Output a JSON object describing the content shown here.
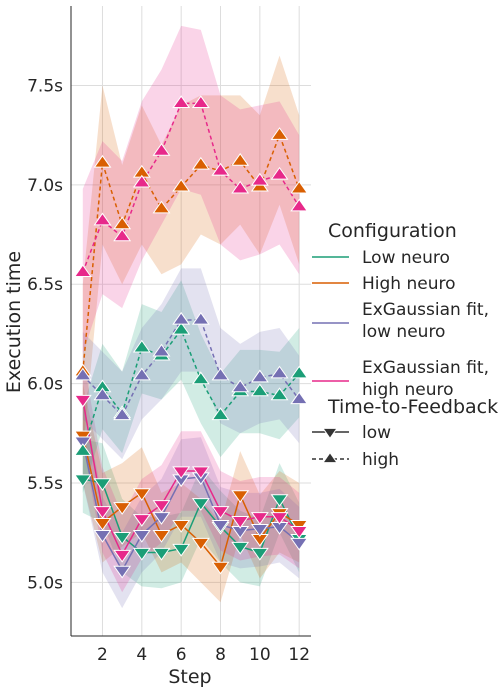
{
  "chart_data": {
    "type": "line",
    "xlabel": "Step",
    "ylabel": "Execution time",
    "xlim": [
      0.4,
      12.6
    ],
    "ylim": [
      4.73,
      7.9
    ],
    "x_ticks": [
      2,
      4,
      6,
      8,
      10,
      12
    ],
    "x_tick_labels": [
      "2",
      "4",
      "6",
      "8",
      "10",
      "12"
    ],
    "y_ticks": [
      5.0,
      5.5,
      6.0,
      6.5,
      7.0,
      7.5
    ],
    "y_tick_labels": [
      "5.0s",
      "5.5s",
      "6.0s",
      "6.5s",
      "7.0s",
      "7.5s"
    ],
    "grid": true,
    "legend_placement": "right",
    "legend": {
      "hue_title": "Configuration",
      "hue_entries": [
        {
          "lines": [
            "Low neuro"
          ],
          "color": "#1b9e77"
        },
        {
          "lines": [
            "High neuro"
          ],
          "color": "#d95f02"
        },
        {
          "lines": [
            "ExGaussian fit,",
            "low neuro"
          ],
          "color": "#7570b3"
        },
        {
          "lines": [
            "ExGaussian fit,",
            "high neuro"
          ],
          "color": "#e7298a"
        }
      ],
      "style_title": "Time-to-Feedback",
      "style_entries": [
        {
          "label": "low",
          "marker": "triangle-down",
          "dash": "solid"
        },
        {
          "label": "high",
          "marker": "triangle-up",
          "dash": "dashed"
        }
      ]
    },
    "x": [
      1,
      2,
      3,
      4,
      5,
      6,
      7,
      8,
      9,
      10,
      11,
      12
    ],
    "series": [
      {
        "configuration": "Low neuro",
        "ttf": "low",
        "color": "#1b9e77",
        "values": [
          5.52,
          5.5,
          5.23,
          5.15,
          5.15,
          5.17,
          5.4,
          5.28,
          5.18,
          5.15,
          5.42,
          5.22
        ],
        "lower": [
          5.35,
          5.3,
          5.05,
          4.98,
          4.97,
          5.0,
          5.22,
          5.1,
          5.0,
          4.98,
          5.25,
          5.05
        ],
        "upper": [
          5.72,
          5.7,
          5.42,
          5.33,
          5.33,
          5.35,
          5.58,
          5.46,
          5.36,
          5.32,
          5.6,
          5.4
        ]
      },
      {
        "configuration": "High neuro",
        "ttf": "low",
        "color": "#d95f02",
        "values": [
          5.74,
          5.3,
          5.38,
          5.45,
          5.24,
          5.29,
          5.2,
          5.08,
          5.44,
          5.22,
          5.35,
          5.29
        ],
        "lower": [
          5.5,
          5.1,
          5.18,
          5.25,
          5.05,
          5.1,
          5.0,
          4.9,
          5.24,
          5.02,
          5.15,
          5.1
        ],
        "upper": [
          6.0,
          5.55,
          5.6,
          5.68,
          5.45,
          5.5,
          5.42,
          5.3,
          5.66,
          5.44,
          5.56,
          5.5
        ]
      },
      {
        "configuration": "ExGaussian fit, low neuro",
        "ttf": "low",
        "color": "#7570b3",
        "values": [
          5.71,
          5.24,
          5.06,
          5.24,
          5.33,
          5.52,
          5.53,
          5.29,
          5.26,
          5.27,
          5.28,
          5.2
        ],
        "lower": [
          5.5,
          5.05,
          4.87,
          5.05,
          5.15,
          5.33,
          5.33,
          5.1,
          5.07,
          5.08,
          5.1,
          5.02
        ],
        "upper": [
          5.92,
          5.43,
          5.25,
          5.43,
          5.52,
          5.72,
          5.73,
          5.48,
          5.45,
          5.45,
          5.47,
          5.38
        ]
      },
      {
        "configuration": "ExGaussian fit, high neuro",
        "ttf": "low",
        "color": "#e7298a",
        "values": [
          5.92,
          5.36,
          5.14,
          5.32,
          5.39,
          5.56,
          5.56,
          5.36,
          5.31,
          5.33,
          5.33,
          5.26
        ],
        "lower": [
          5.7,
          5.15,
          4.95,
          5.12,
          5.2,
          5.36,
          5.36,
          5.16,
          5.11,
          5.13,
          5.14,
          5.07
        ],
        "upper": [
          6.14,
          5.58,
          5.34,
          5.52,
          5.59,
          5.76,
          5.76,
          5.56,
          5.51,
          5.53,
          5.53,
          5.45
        ]
      },
      {
        "configuration": "Low neuro",
        "ttf": "high",
        "color": "#1b9e77",
        "values": [
          5.66,
          5.98,
          5.85,
          6.18,
          6.14,
          6.27,
          6.02,
          5.84,
          5.96,
          5.96,
          5.94,
          6.05
        ],
        "lower": [
          5.45,
          5.77,
          5.65,
          5.95,
          5.92,
          6.02,
          5.8,
          5.63,
          5.75,
          5.75,
          5.72,
          5.83
        ],
        "upper": [
          5.88,
          6.2,
          6.06,
          6.4,
          6.36,
          6.52,
          6.25,
          6.05,
          6.17,
          6.17,
          6.16,
          6.28
        ]
      },
      {
        "configuration": "High neuro",
        "ttf": "high",
        "color": "#d95f02",
        "values": [
          6.06,
          7.11,
          6.8,
          7.06,
          6.88,
          6.99,
          7.1,
          7.07,
          7.12,
          6.99,
          7.25,
          6.98
        ],
        "lower": [
          5.65,
          6.7,
          6.5,
          6.7,
          6.55,
          6.6,
          6.75,
          6.7,
          6.8,
          6.65,
          6.9,
          6.6
        ],
        "upper": [
          6.5,
          7.5,
          7.1,
          7.4,
          7.2,
          7.4,
          7.45,
          7.45,
          7.45,
          7.35,
          7.65,
          7.35
        ]
      },
      {
        "configuration": "ExGaussian fit, low neuro",
        "ttf": "high",
        "color": "#7570b3",
        "values": [
          6.04,
          5.94,
          5.84,
          6.04,
          6.16,
          6.32,
          6.32,
          6.04,
          5.98,
          6.03,
          6.05,
          5.92
        ],
        "lower": [
          5.82,
          5.72,
          5.62,
          5.82,
          5.92,
          6.06,
          6.06,
          5.8,
          5.75,
          5.8,
          5.82,
          5.7
        ],
        "upper": [
          6.26,
          6.16,
          6.06,
          6.28,
          6.4,
          6.58,
          6.58,
          6.28,
          6.2,
          6.26,
          6.28,
          6.14
        ]
      },
      {
        "configuration": "ExGaussian fit, high neuro",
        "ttf": "high",
        "color": "#e7298a",
        "values": [
          6.56,
          6.82,
          6.74,
          7.01,
          7.17,
          7.41,
          7.41,
          7.07,
          6.98,
          7.02,
          7.05,
          6.89
        ],
        "lower": [
          6.15,
          6.45,
          6.38,
          6.62,
          6.8,
          6.98,
          6.95,
          6.7,
          6.62,
          6.65,
          6.7,
          6.55
        ],
        "upper": [
          6.98,
          7.22,
          7.12,
          7.42,
          7.58,
          7.8,
          7.78,
          7.45,
          7.38,
          7.4,
          7.42,
          7.25
        ]
      }
    ]
  }
}
